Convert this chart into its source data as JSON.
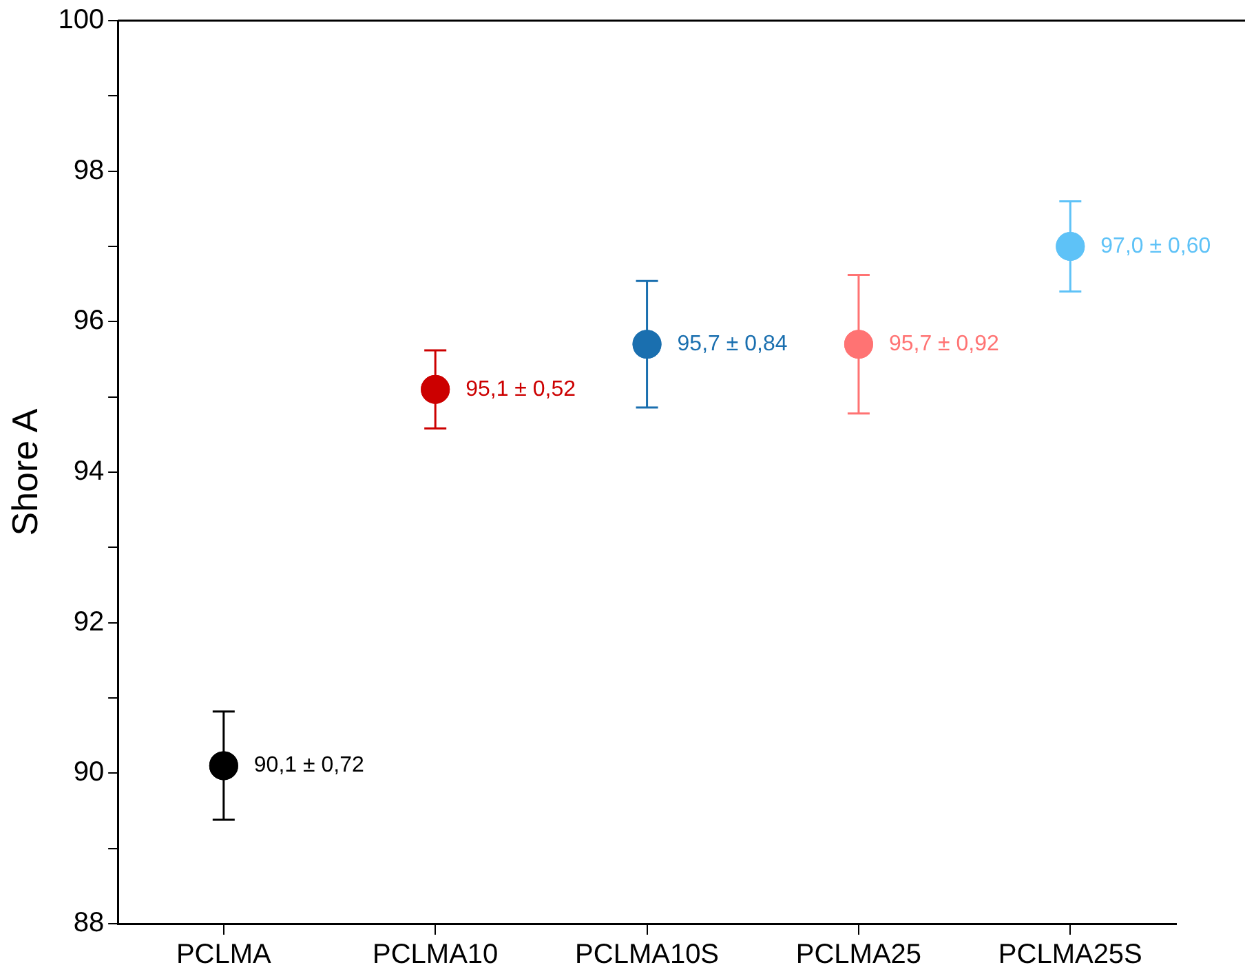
{
  "chart_data": {
    "type": "scatter",
    "ylabel": "Shore A",
    "categories": [
      "PCLMA",
      "PCLMA10",
      "PCLMA10S",
      "PCLMA25",
      "PCLMA25S"
    ],
    "values": [
      90.1,
      95.1,
      95.7,
      95.7,
      97.0
    ],
    "errors": [
      0.72,
      0.52,
      0.84,
      0.92,
      0.6
    ],
    "value_labels": [
      "90,1 ± 0,72",
      "95,1 ± 0,52",
      "95,7 ± 0,84",
      "95,7 ± 0,92",
      "97,0 ± 0,60"
    ],
    "colors": [
      "#000000",
      "#cc0000",
      "#1a6faf",
      "#ff7373",
      "#5ec2f7"
    ],
    "ylim": [
      88,
      100
    ],
    "yticks": [
      88,
      {
        "value": 89,
        "label": null
      },
      90,
      {
        "value": 91,
        "label": null
      },
      92,
      {
        "value": 93,
        "label": null
      },
      94,
      {
        "value": 95,
        "label": null
      },
      96,
      {
        "value": 97,
        "label": null
      },
      98,
      {
        "value": 99,
        "label": null
      },
      100
    ],
    "marker": "circle",
    "grid": false,
    "legend": false
  }
}
